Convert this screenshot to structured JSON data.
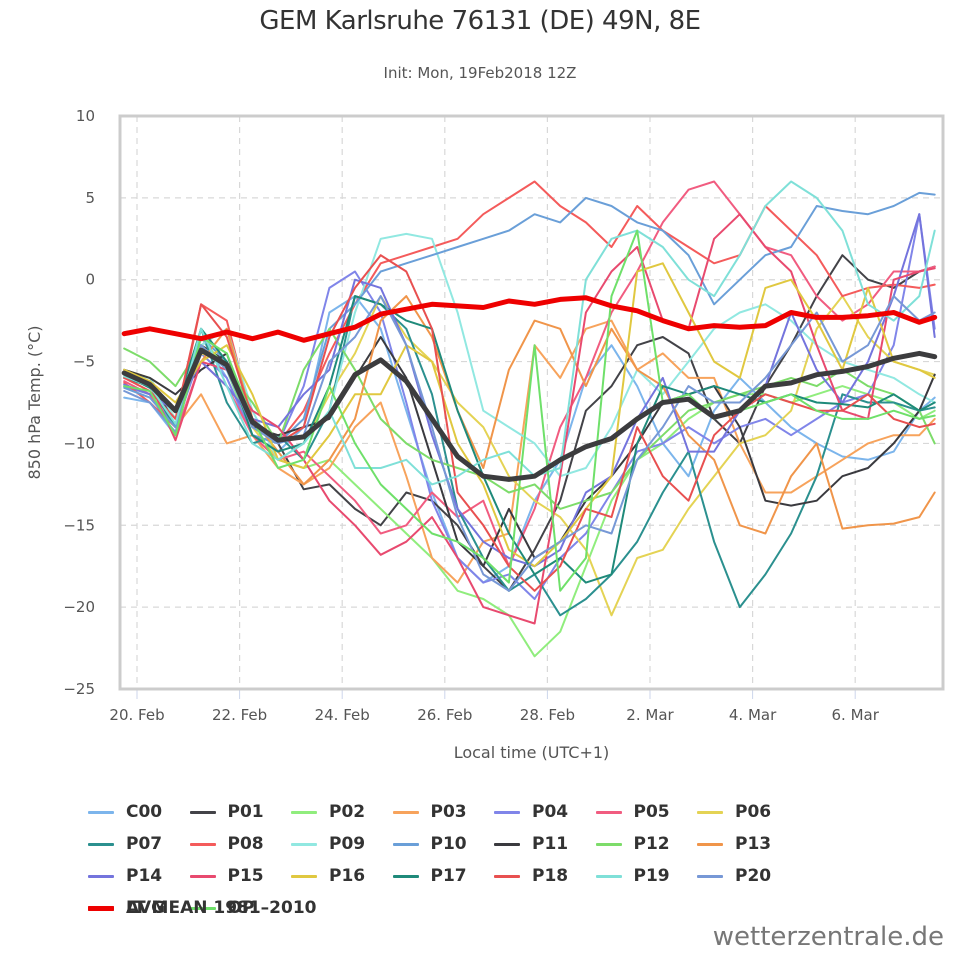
{
  "header": {
    "title": "GEM Karlsruhe 76131 (DE) 49N, 8E",
    "subtitle": "Init: Mon, 19Feb2018 12Z"
  },
  "credit": "wetterzentrale.de",
  "chart_data": {
    "type": "line",
    "title": "GEM Karlsruhe 76131 (DE) 49N, 8E",
    "subtitle": "Init: Mon, 19Feb2018 12Z",
    "xlabel": "Local time (UTC+1)",
    "ylabel": "850 hPa Temp. (°C)",
    "ylim": [
      -25,
      10
    ],
    "yticks": [
      "10",
      "5",
      "0",
      "−5",
      "−10",
      "−15",
      "−20",
      "−25"
    ],
    "ytick_values": [
      10,
      5,
      0,
      -5,
      -10,
      -15,
      -20,
      -25
    ],
    "xticks": [
      "20. Feb",
      "22. Feb",
      "24. Feb",
      "26. Feb",
      "28. Feb",
      "2. Mar",
      "4. Mar",
      "6. Mar"
    ],
    "xtick_days": [
      0,
      2,
      4,
      6,
      8,
      10,
      12,
      14
    ],
    "x_unit": "days since 20 Feb 2018 00:00 local",
    "xlim": [
      -0.3,
      15.6
    ],
    "grid": true,
    "legend_position": "bottom",
    "x": [
      -0.25,
      0.25,
      0.75,
      1.25,
      1.75,
      2.25,
      2.75,
      3.25,
      3.75,
      4.25,
      4.75,
      5.25,
      5.75,
      6.25,
      6.75,
      7.25,
      7.75,
      8.25,
      8.75,
      9.25,
      9.75,
      10.25,
      10.75,
      11.25,
      11.75,
      12.25,
      12.75,
      13.25,
      13.75,
      14.25,
      14.75,
      15.25,
      15.55
    ],
    "series": [
      {
        "name": "C00",
        "color": "#7cb5ec",
        "values": [
          -7.2,
          -7.5,
          -9.5,
          -3.5,
          -6.0,
          -9.5,
          -10.5,
          -9.0,
          -2.0,
          -1.0,
          -3.0,
          -8.0,
          -13.0,
          -17.0,
          -18.5,
          -17.5,
          -13.5,
          -11.0,
          -6.0,
          -4.0,
          -6.5,
          -10.0,
          -12.0,
          -8.0,
          -6.0,
          -7.5,
          -9.0,
          -10.0,
          -10.8,
          -11.0,
          -10.5,
          -8.0,
          -7.2
        ]
      },
      {
        "name": "P01",
        "color": "#434348",
        "values": [
          -6.0,
          -6.5,
          -8.5,
          -4.0,
          -5.0,
          -9.0,
          -10.0,
          -12.8,
          -12.5,
          -14.0,
          -15.0,
          -13.0,
          -13.5,
          -15.0,
          -17.5,
          -19.0,
          -16.5,
          -13.5,
          -8.0,
          -6.5,
          -4.0,
          -3.5,
          -4.5,
          -8.5,
          -10.0,
          -6.5,
          -4.0,
          -1.0,
          1.5,
          0.0,
          -0.5,
          0.5,
          0.8
        ]
      },
      {
        "name": "P02",
        "color": "#90ed7d",
        "values": [
          -6.5,
          -7.0,
          -9.5,
          -3.5,
          -5.5,
          -9.5,
          -11.0,
          -11.5,
          -11.0,
          -12.5,
          -14.0,
          -15.5,
          -17.0,
          -19.0,
          -19.5,
          -20.5,
          -23.0,
          -21.5,
          -17.5,
          -13.5,
          -11.0,
          -10.0,
          -8.5,
          -7.5,
          -7.0,
          -7.0,
          -7.5,
          -7.0,
          -6.5,
          -7.0,
          -7.5,
          -8.5,
          -8.0
        ]
      },
      {
        "name": "P03",
        "color": "#f7a35c",
        "values": [
          -6.0,
          -6.5,
          -9.0,
          -7.0,
          -10.0,
          -9.5,
          -11.5,
          -12.5,
          -11.5,
          -9.0,
          -7.5,
          -12.0,
          -17.0,
          -18.5,
          -16.0,
          -15.5,
          -4.0,
          -6.0,
          -3.0,
          -2.5,
          -5.5,
          -4.5,
          -6.0,
          -6.0,
          -10.0,
          -13.0,
          -13.0,
          -12.0,
          -11.0,
          -10.0,
          -9.5,
          -9.5,
          -8.5
        ]
      },
      {
        "name": "P04",
        "color": "#8085e9",
        "values": [
          -6.5,
          -7.0,
          -9.0,
          -4.5,
          -6.0,
          -9.5,
          -10.0,
          -6.5,
          -0.5,
          0.5,
          -2.0,
          -7.5,
          -13.5,
          -17.0,
          -18.5,
          -18.0,
          -19.5,
          -17.0,
          -15.5,
          -13.0,
          -10.5,
          -10.0,
          -9.0,
          -10.0,
          -9.0,
          -8.5,
          -9.5,
          -8.5,
          -7.5,
          -7.0,
          -4.0,
          4.0,
          -3.0
        ]
      },
      {
        "name": "P05",
        "color": "#f15c80",
        "values": [
          -6.2,
          -7.0,
          -9.5,
          -5.0,
          -6.5,
          -9.5,
          -11.0,
          -10.5,
          -12.0,
          -13.5,
          -15.5,
          -15.0,
          -13.0,
          -14.5,
          -13.5,
          -17.5,
          -14.0,
          -9.0,
          -6.0,
          -2.0,
          0.5,
          3.5,
          5.5,
          6.0,
          4.0,
          2.0,
          1.5,
          -1.0,
          -2.5,
          -1.5,
          0.5,
          0.5,
          0.8
        ]
      },
      {
        "name": "P06",
        "color": "#e4d354",
        "values": [
          -5.5,
          -6.0,
          -8.5,
          -4.5,
          -5.0,
          -9.0,
          -11.0,
          -10.0,
          -7.0,
          -4.5,
          -1.0,
          -3.5,
          -5.0,
          -7.5,
          -9.0,
          -12.0,
          -13.5,
          -14.5,
          -16.5,
          -20.5,
          -17.0,
          -16.5,
          -14.0,
          -12.0,
          -10.0,
          -9.5,
          -8.0,
          -3.0,
          -1.0,
          -3.5,
          -5.0,
          -5.5,
          -5.8
        ]
      },
      {
        "name": "P07",
        "color": "#2b908f",
        "values": [
          -6.0,
          -6.5,
          -9.0,
          -3.0,
          -7.5,
          -10.0,
          -9.5,
          -11.0,
          -8.0,
          -1.0,
          -1.5,
          -3.0,
          -7.0,
          -14.0,
          -17.0,
          -19.0,
          -18.0,
          -20.5,
          -19.5,
          -18.0,
          -16.0,
          -13.0,
          -10.5,
          -16.0,
          -20.0,
          -18.0,
          -15.5,
          -12.0,
          -7.0,
          -7.5,
          -7.5,
          -8.0,
          -7.8
        ]
      },
      {
        "name": "P08",
        "color": "#f45b5b",
        "values": [
          -6.3,
          -7.5,
          -9.0,
          -1.5,
          -2.5,
          -8.5,
          -10.0,
          -8.0,
          -4.5,
          -1.5,
          1.0,
          1.5,
          2.0,
          2.5,
          4.0,
          5.0,
          6.0,
          4.5,
          3.5,
          2.0,
          4.5,
          3.0,
          2.0,
          1.0,
          1.5,
          4.5,
          3.0,
          1.5,
          -1.0,
          -0.5,
          -0.3,
          -0.5,
          -0.3
        ]
      },
      {
        "name": "P09",
        "color": "#91e8e1",
        "values": [
          -5.8,
          -6.0,
          -8.5,
          -4.0,
          -3.0,
          -8.0,
          -11.0,
          -10.0,
          -8.0,
          -2.0,
          2.5,
          2.8,
          2.5,
          -2.0,
          -8.0,
          -9.0,
          -10.0,
          -12.0,
          -11.5,
          -9.0,
          -5.5,
          -7.0,
          -5.0,
          -3.0,
          -2.0,
          -1.5,
          -2.5,
          -4.0,
          -5.0,
          -5.5,
          -6.0,
          -7.0,
          -7.5
        ]
      },
      {
        "name": "P10",
        "color": "#6a9fd8",
        "values": [
          -6.6,
          -7.2,
          -9.0,
          -3.5,
          -5.0,
          -9.5,
          -10.0,
          -8.5,
          -3.0,
          -1.5,
          0.5,
          1.0,
          1.5,
          2.0,
          2.5,
          3.0,
          4.0,
          3.5,
          5.0,
          4.5,
          3.5,
          3.0,
          1.5,
          -1.5,
          0.0,
          1.5,
          2.0,
          4.5,
          4.2,
          4.0,
          4.5,
          5.3,
          5.2
        ]
      },
      {
        "name": "P11",
        "color": "#3a3a3f",
        "values": [
          -5.5,
          -6.0,
          -7.0,
          -5.5,
          -4.5,
          -9.0,
          -9.5,
          -9.0,
          -8.5,
          -6.0,
          -3.5,
          -6.0,
          -11.0,
          -16.0,
          -17.5,
          -14.0,
          -17.0,
          -16.0,
          -13.5,
          -12.0,
          -10.0,
          -7.5,
          -7.0,
          -6.5,
          -9.0,
          -13.5,
          -13.8,
          -13.5,
          -12.0,
          -11.5,
          -10.0,
          -8.0,
          -5.8
        ]
      },
      {
        "name": "P12",
        "color": "#7ddc6a",
        "values": [
          -4.2,
          -5.0,
          -6.5,
          -4.0,
          -5.5,
          -7.5,
          -10.0,
          -5.5,
          -3.0,
          -5.5,
          -8.5,
          -10.0,
          -11.0,
          -11.5,
          -12.0,
          -13.0,
          -12.5,
          -14.0,
          -13.5,
          -13.0,
          -11.0,
          -9.5,
          -8.0,
          -7.5,
          -7.0,
          -6.5,
          -6.0,
          -6.5,
          -5.5,
          -6.5,
          -7.0,
          -8.0,
          -10.0
        ]
      },
      {
        "name": "P13",
        "color": "#f0954a",
        "values": [
          -5.6,
          -6.5,
          -8.0,
          -5.0,
          -3.0,
          -8.5,
          -10.5,
          -12.5,
          -11.0,
          -8.5,
          -2.5,
          -1.0,
          -3.5,
          -8.0,
          -11.5,
          -5.5,
          -2.5,
          -3.0,
          -6.5,
          -3.0,
          -5.5,
          -6.5,
          -9.5,
          -11.0,
          -15.0,
          -15.5,
          -12.0,
          -10.0,
          -15.2,
          -15.0,
          -14.9,
          -14.5,
          -13.0
        ]
      },
      {
        "name": "P14",
        "color": "#7474dd",
        "values": [
          -6.4,
          -7.0,
          -8.0,
          -5.0,
          -6.5,
          -8.5,
          -9.0,
          -7.0,
          -5.5,
          0.0,
          -0.5,
          -4.0,
          -9.5,
          -14.0,
          -16.0,
          -17.0,
          -17.5,
          -16.5,
          -13.0,
          -12.0,
          -8.5,
          -6.0,
          -10.5,
          -10.5,
          -8.0,
          -6.5,
          -2.0,
          -5.5,
          -7.5,
          -5.0,
          -1.0,
          4.0,
          -3.5
        ]
      },
      {
        "name": "P15",
        "color": "#e84a6f",
        "values": [
          -5.8,
          -6.3,
          -9.8,
          -5.0,
          -5.5,
          -8.0,
          -9.0,
          -11.0,
          -13.5,
          -15.0,
          -16.8,
          -16.0,
          -14.5,
          -17.0,
          -20.0,
          -20.5,
          -21.0,
          -12.0,
          -2.0,
          0.5,
          2.0,
          -2.5,
          -3.0,
          2.5,
          4.0,
          2.0,
          0.5,
          -4.0,
          -8.0,
          -8.5,
          0.0,
          0.5,
          0.7
        ]
      },
      {
        "name": "P16",
        "color": "#e0c840",
        "values": [
          -5.5,
          -6.2,
          -7.5,
          -5.0,
          -4.0,
          -7.0,
          -11.0,
          -11.5,
          -9.5,
          -7.0,
          -7.0,
          -4.0,
          -5.0,
          -10.0,
          -12.5,
          -16.5,
          -17.5,
          -16.0,
          -14.0,
          -12.0,
          0.5,
          1.0,
          -2.0,
          -5.0,
          -6.0,
          -0.5,
          0.0,
          -2.5,
          -5.5,
          -0.5,
          -5.0,
          -5.5,
          -6.0
        ]
      },
      {
        "name": "P17",
        "color": "#1f8a7a",
        "values": [
          -5.8,
          -6.6,
          -8.0,
          -3.0,
          -5.0,
          -9.5,
          -10.5,
          -10.0,
          -6.5,
          -1.0,
          -1.5,
          -2.5,
          -3.0,
          -8.0,
          -12.0,
          -15.5,
          -18.0,
          -17.0,
          -18.5,
          -18.0,
          -10.0,
          -6.5,
          -7.0,
          -6.5,
          -7.0,
          -7.5,
          -7.0,
          -7.5,
          -7.6,
          -7.8,
          -7.0,
          -8.0,
          -7.5
        ]
      },
      {
        "name": "P18",
        "color": "#e85050",
        "values": [
          -6.0,
          -6.8,
          -8.5,
          -1.5,
          -3.5,
          -8.5,
          -10.0,
          -9.0,
          -3.5,
          -0.5,
          1.5,
          0.5,
          -3.0,
          -13.0,
          -15.0,
          -17.5,
          -19.0,
          -17.5,
          -14.0,
          -14.5,
          -9.0,
          -12.0,
          -13.5,
          -9.5,
          -8.0,
          -7.0,
          -7.5,
          -8.0,
          -8.0,
          -7.0,
          -8.5,
          -9.0,
          -8.8
        ]
      },
      {
        "name": "P19",
        "color": "#7fe0d8",
        "values": [
          -5.9,
          -6.5,
          -8.8,
          -3.0,
          -6.5,
          -10.0,
          -11.0,
          -10.0,
          -8.0,
          -11.5,
          -11.5,
          -11.0,
          -12.5,
          -12.0,
          -11.0,
          -10.5,
          -12.0,
          -11.5,
          0.0,
          2.5,
          3.0,
          2.0,
          0.0,
          -1.0,
          1.5,
          4.5,
          6.0,
          5.0,
          3.0,
          -1.5,
          -2.5,
          -1.0,
          3.0
        ]
      },
      {
        "name": "P20",
        "color": "#7798d6",
        "values": [
          -6.8,
          -7.5,
          -9.3,
          -4.0,
          -5.5,
          -9.0,
          -10.0,
          -9.5,
          -5.0,
          -3.5,
          -1.0,
          -4.0,
          -9.0,
          -14.5,
          -18.0,
          -19.0,
          -17.0,
          -16.0,
          -15.0,
          -15.5,
          -11.0,
          -9.0,
          -6.5,
          -7.5,
          -7.5,
          -6.0,
          -4.0,
          -2.0,
          -5.0,
          -4.0,
          -1.0,
          -2.5,
          -2.0
        ]
      },
      {
        "name": "AVG",
        "color": "#3c3c3e",
        "thick": true,
        "values": [
          -5.7,
          -6.4,
          -8.0,
          -4.3,
          -5.2,
          -8.7,
          -9.8,
          -9.6,
          -8.3,
          -5.8,
          -4.9,
          -6.2,
          -8.5,
          -10.8,
          -12.0,
          -12.2,
          -12.0,
          -11.0,
          -10.2,
          -9.7,
          -8.5,
          -7.5,
          -7.3,
          -8.4,
          -8.0,
          -6.5,
          -6.3,
          -5.8,
          -5.6,
          -5.3,
          -4.8,
          -4.5,
          -4.7
        ]
      },
      {
        "name": "OP",
        "color": "#6fe06a",
        "values": [
          -6.5,
          -6.8,
          -9.5,
          -3.5,
          -4.5,
          -8.5,
          -11.5,
          -11.0,
          -6.5,
          -10.0,
          -12.5,
          -14.0,
          -15.5,
          -16.0,
          -17.0,
          -18.5,
          -4.0,
          -19.0,
          -17.0,
          -1.0,
          3.0,
          -7.5,
          -7.0,
          -8.5,
          -8.0,
          -7.5,
          -7.0,
          -8.0,
          -8.5,
          -8.5,
          -8.0,
          -8.5,
          -8.3
        ]
      },
      {
        "name": "LT MEAN 1981-2010",
        "color": "#ee0000",
        "thick": true,
        "values": [
          -3.3,
          -3.0,
          -3.3,
          -3.6,
          -3.2,
          -3.6,
          -3.2,
          -3.7,
          -3.3,
          -2.9,
          -2.1,
          -1.8,
          -1.5,
          -1.6,
          -1.7,
          -1.3,
          -1.5,
          -1.2,
          -1.1,
          -1.6,
          -1.9,
          -2.5,
          -3.0,
          -2.8,
          -2.9,
          -2.8,
          -2.0,
          -2.3,
          -2.3,
          -2.2,
          -2.0,
          -2.6,
          -2.3
        ]
      }
    ]
  }
}
